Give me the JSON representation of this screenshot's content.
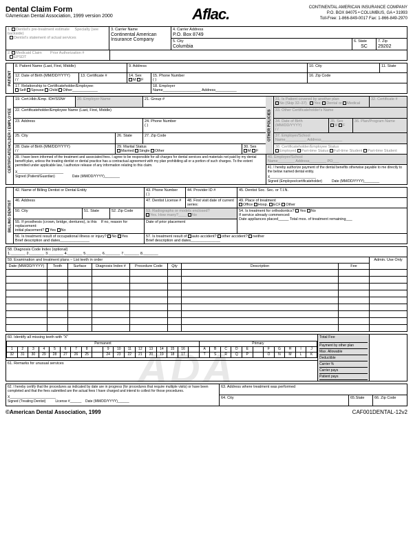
{
  "header": {
    "title": "Dental Claim Form",
    "subtitle": "©American Dental Association, 1999 version 2000",
    "logo": "Aflac.",
    "company": "CONTINENTAL AMERICAN INSURANCE COMPANY",
    "addr": "P.O. BOX 84075 • COLUMBUS, GA • 31993",
    "phone": "Toll-Free: 1-866-849-0017  Fax: 1-866-849-2970"
  },
  "s1": {
    "l1a": "1.",
    "l1b": "Dentist's pre-treatment estimate",
    "l1c": "Specialty (see backside)",
    "l1d": "Dentist's statement of actual services",
    "l2a": "2.",
    "l2b": "Medicaid Claim",
    "l2c": "Prior Authorization #",
    "l2d": "EPSDT",
    "l3": "3. Carrier Name",
    "l3v": "Continental American Insurance Company",
    "l4": "4. Carrier Address",
    "l4v": "P.O. Box 8749",
    "l5": "5. City",
    "l5v": "Columbia",
    "l6": "6. State",
    "l6v": "SC",
    "l7": "7. Zip",
    "l7v": "29202"
  },
  "pat": {
    "rot": "PATIENT",
    "l8": "8. Patient Name (Last, First, Middle)",
    "l9": "9. Address",
    "l10": "10. City",
    "l11": "11. State",
    "l12": "12. Date of Birth (MM/DD/YYYY)",
    "l12v": "/          /",
    "l13": "13. Certificate #",
    "l14": "14. Sex",
    "l14m": "M",
    "l14f": "F",
    "l15": "15. Phone Number",
    "l15v": "(          )",
    "l16": "16. Zip Code",
    "l17": "17. Relationship to Certificateholder/Employee:",
    "l17o": "Self",
    "l17s": "Spouse",
    "l17c": "Child",
    "l17ot": "Other",
    "l18": "18. Employer",
    "l18n": "Name",
    "l18a": "Address"
  },
  "emp": {
    "rot": "CERTIFICATEHOLDER / EMPLOYEE",
    "rot2": "OTHER POLICIES",
    "l19": "19. Cert.Hldr./Emp. ID#/SSN#",
    "l20": "20. Employer Name",
    "l21": "21. Group #",
    "l22": "22. Certificateholder/Employee Name (Last, First, Middle)",
    "l23": "23. Address",
    "l24": "24. Phone Number",
    "l24v": "(     )",
    "l25": "25. City",
    "l26": "26. State",
    "l27": "27. Zip Code",
    "l28": "28. Date of Birth (MM/DD/YYYY)",
    "l28v": "/          /",
    "l29": "29. Marital Status",
    "l29m": "Married",
    "l29s": "Single",
    "l29o": "Other",
    "l30": "30. Sex",
    "l30m": "M",
    "l30f": "F",
    "l31": "31. Is Patient covered by another plan",
    "l31n": "No (Skip 32–37)",
    "l31y": "Yes:",
    "l31d": "Dental  or",
    "l31m": "Medical",
    "l32": "32. Certificate #",
    "l33": "33. Other Certificateholder's Name",
    "l34": "34. Date of Birth (MM/DD/YYYY)",
    "l34v": "/          /",
    "l35": "35. Sex",
    "l35m": "M",
    "l35f": "F",
    "l36": "36. Plan/Program Name",
    "l37": "37. Employer/School",
    "l37n": "Name",
    "l37a": "Address",
    "l38": "38. Certificateholder/Employee Status",
    "l38e": "Employed",
    "l38p": "Part-time Status",
    "l38f": "Full-time Student",
    "l38ps": "Part-time Student",
    "l39": "39. I have been informed of the treatment and associated fees. I agree to be responsible for all charges for dental services and materials not paid by my dental benefit plan, unless the treating dentist or dental practice has a contractual agreement with my plan prohibiting all or a portion of such charges. To the extent permitted under applicable law, I authorize release of any information relating to this claim.",
    "l39x": "X",
    "l39s": "Signed (Patient/Guardian)",
    "l39d": "Date (MM/DD/YYYY)",
    "l40": "40. Employer/School",
    "l40n": "Name",
    "l40a": "Address",
    "l40p": "PO",
    "l41": "41. I hereby authorize payment of the dental benefits otherwise payable to me directly to the below named dental entity.",
    "l41x": "X",
    "l41s": "Signed (Employee/certificateholder)",
    "l41d": "Date (MM/DD/YYYY)"
  },
  "den": {
    "rot": "BILLING DENTIST",
    "l42": "42. Name of Billing Dentist or Dental Entity",
    "l43": "43. Phone Number",
    "l43v": "(     )",
    "l44": "44. Provider ID #",
    "l45": "45. Dentist Soc. Sec. or T.I.N.",
    "l46": "46. Address",
    "l47": "47. Dentist License #",
    "l48": "48. First visit date of current series:",
    "l49": "49. Place of treatment",
    "l49o": "Office",
    "l49h": "Hosp.",
    "l49e": "ECF",
    "l49ot": "Other",
    "l50": "50. City",
    "l51": "51. State",
    "l52": "52. Zip Code",
    "l53": "53. Radiographs or models enclosed?",
    "l53y": "Yes. How many?",
    "l53n": "No",
    "l54": "54. Is treatment for orthodontics?",
    "l54y": "Yes",
    "l54n": "No",
    "l54s": "If service already commenced:",
    "l54d": "Date appliances placed",
    "l54t": "Total mos. of treatment remaining",
    "l55": "55. If prosthesis (crown, bridge, dentures), is this",
    "l55r": "If no, reason for replacement:",
    "l55p": "Date of prior placement",
    "l55i": "initial placement?",
    "l55y": "Yes",
    "l55n": "No",
    "l56": "56. Is treatment result of occupational illness or injury?",
    "l56n": "No",
    "l56y": "Yes",
    "l56b": "Brief description and dates",
    "l57": "57. Is treatment result of",
    "l57a": "auto accident?",
    "l57o": "other accident?",
    "l57n": "neither",
    "l57b": "Brief description and dates"
  },
  "dx": {
    "l58": "58. Diagnosis Code Index (optional)",
    "n1": "1.",
    "n2": "2.",
    "n3": "3.",
    "n4": "4.",
    "n5": "5.",
    "n6": "6.",
    "n7": "7.",
    "n8": "8."
  },
  "proc": {
    "l59": "59. Examination and treatment plans – List teeth in order",
    "admin": "Admin. Use Only",
    "c1": "Date (MM/DD/YYYY)",
    "c2": "Tooth",
    "c3": "Surface",
    "c4": "Diagnosis Index #",
    "c5": "Procedure Code",
    "c6": "Qty",
    "c7": "Description",
    "c8": "Fee"
  },
  "teeth": {
    "l60": "60. Identify all missing teeth with \"X\"",
    "perm": "Permanent",
    "prim": "Primary",
    "tf": "Total Fee",
    "r1": [
      "1",
      "2",
      "3",
      "4",
      "5",
      "6",
      "7",
      "8",
      "",
      "9",
      "10",
      "11",
      "12",
      "13",
      "14",
      "15",
      "16",
      "",
      "A",
      "B",
      "C",
      "D",
      "E",
      "",
      "F",
      "G",
      "H",
      "I",
      "J"
    ],
    "r2": [
      "32",
      "31",
      "30",
      "29",
      "28",
      "27",
      "26",
      "25",
      "",
      "24",
      "23",
      "22",
      "21",
      "20",
      "19",
      "18",
      "17",
      "",
      "T",
      "S",
      "R",
      "Q",
      "P",
      "",
      "O",
      "N",
      "M",
      "L",
      "K"
    ],
    "pay": [
      "Payment by other plan",
      "Max. Allowable",
      "Deductible",
      "Carrier %",
      "Carrier pays",
      "Patient pays"
    ],
    "l61": "61. Remarks for unusual services"
  },
  "cert": {
    "l62": "62. I hereby certify that the procedures as indicated by date are in progress (for procedures that require multiple visits) or have been completed and that the fees submitted are the actual fees I have charged and intend to collect for those procedures.",
    "x": "X",
    "sig": "Signed (Treating Dentist)",
    "lic": "License #",
    "dt": "Date (MM/DD/YYYY)",
    "l63": "63. Address where treatment was performed",
    "l64": "64. City",
    "l65": "65.State",
    "l66": "66. Zip Code"
  },
  "footer": {
    "l": "©American Dental Association, 1999",
    "r": "CAF001DENTAL-12v2"
  },
  "wm": "ADA"
}
